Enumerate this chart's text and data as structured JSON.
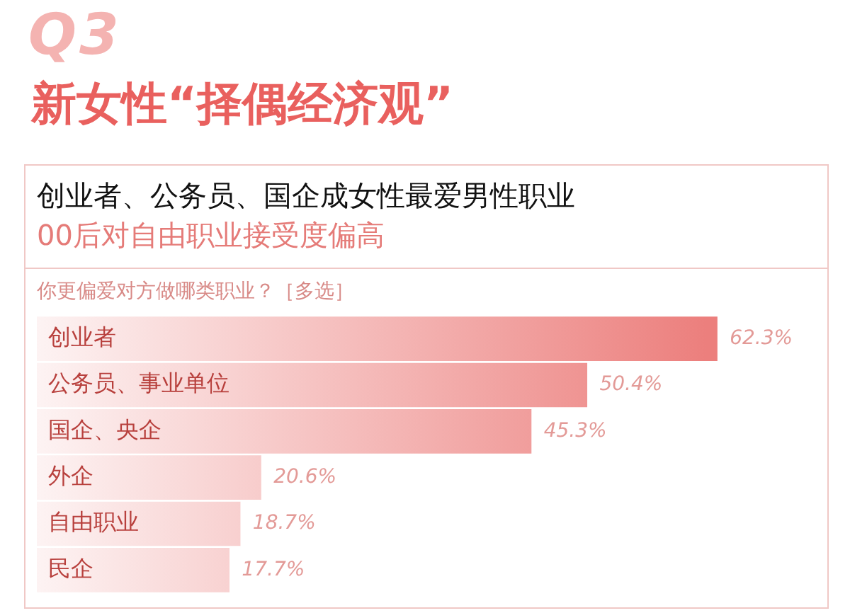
{
  "chart_data": {
    "type": "bar",
    "orientation": "horizontal",
    "title": "新女性“择偶经济观”",
    "subtitle": "创业者、公务员、国企成女性最爱男性职业",
    "annotations": [
      "Q3",
      "00后对自由职业接受度偏高",
      "你更偏爱对方做哪类职业？［多选］"
    ],
    "categories": [
      "创业者",
      "公务员、事业单位",
      "国企、央企",
      "外企",
      "自由职业",
      "民企"
    ],
    "values": [
      62.3,
      50.4,
      45.3,
      20.6,
      18.7,
      17.7
    ],
    "value_labels": [
      "62.3%",
      "50.4%",
      "45.3%",
      "20.6%",
      "18.7%",
      "17.7%"
    ],
    "color": "#ec7f7d",
    "xlim": [
      0,
      72
    ],
    "tick_labels": false,
    "legend": false
  }
}
